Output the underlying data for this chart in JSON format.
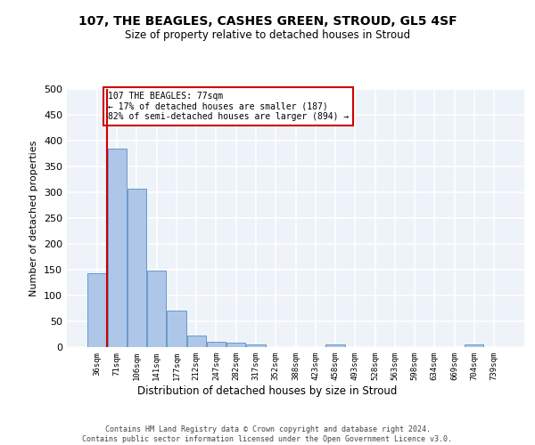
{
  "title1": "107, THE BEAGLES, CASHES GREEN, STROUD, GL5 4SF",
  "title2": "Size of property relative to detached houses in Stroud",
  "xlabel": "Distribution of detached houses by size in Stroud",
  "ylabel": "Number of detached properties",
  "categories": [
    "36sqm",
    "71sqm",
    "106sqm",
    "141sqm",
    "177sqm",
    "212sqm",
    "247sqm",
    "282sqm",
    "317sqm",
    "352sqm",
    "388sqm",
    "423sqm",
    "458sqm",
    "493sqm",
    "528sqm",
    "563sqm",
    "598sqm",
    "634sqm",
    "669sqm",
    "704sqm",
    "739sqm"
  ],
  "values": [
    143,
    385,
    307,
    149,
    70,
    22,
    10,
    9,
    5,
    0,
    0,
    0,
    5,
    0,
    0,
    0,
    0,
    0,
    0,
    5,
    0
  ],
  "bar_color": "#aec6e8",
  "bar_edge_color": "#5a8fc2",
  "subject_line_color": "#cc0000",
  "annotation_text": "107 THE BEAGLES: 77sqm\n← 17% of detached houses are smaller (187)\n82% of semi-detached houses are larger (894) →",
  "annotation_box_color": "#ffffff",
  "annotation_box_edge_color": "#cc0000",
  "ylim": [
    0,
    500
  ],
  "yticks": [
    0,
    50,
    100,
    150,
    200,
    250,
    300,
    350,
    400,
    450,
    500
  ],
  "footer": "Contains HM Land Registry data © Crown copyright and database right 2024.\nContains public sector information licensed under the Open Government Licence v3.0.",
  "bg_color": "#eef2f9",
  "grid_color": "#ffffff"
}
